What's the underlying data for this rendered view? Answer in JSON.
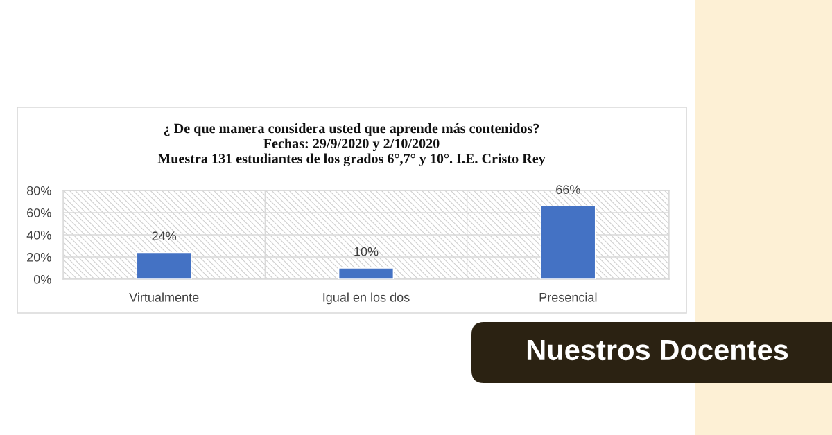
{
  "chart_data": {
    "type": "bar",
    "title": "¿ De que manera considera usted que aprende más contenidos?\nFechas: 29/9/2020 y 2/10/2020\nMuestra 131 estudiantes de los grados 6°,7° y 10°. I.E. Cristo Rey",
    "categories": [
      "Virtualmente",
      "Igual en los dos",
      "Presencial"
    ],
    "values": [
      24,
      10,
      66
    ],
    "value_labels": [
      "24%",
      "10%",
      "66%"
    ],
    "color": "#4472c4",
    "ylim": [
      0,
      80
    ],
    "yticks": [
      {
        "value": 0,
        "label": "0%"
      },
      {
        "value": 20,
        "label": "20%"
      },
      {
        "value": 40,
        "label": "40%"
      },
      {
        "value": 60,
        "label": "60%"
      },
      {
        "value": 80,
        "label": "80%"
      }
    ],
    "grid": true,
    "annotations": [
      "Nuestros Docentes"
    ]
  }
}
